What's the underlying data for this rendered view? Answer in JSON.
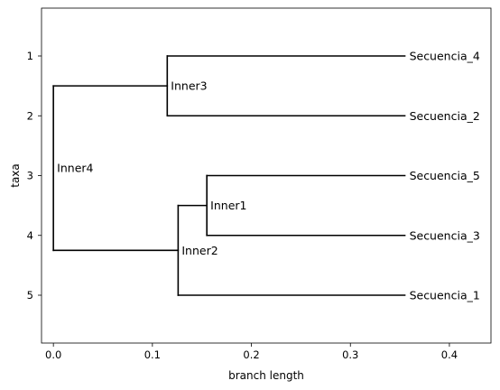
{
  "chart_data": {
    "type": "phylogenetic-tree",
    "xlabel": "branch length",
    "ylabel": "taxa",
    "xlim": [
      -0.012,
      0.442
    ],
    "ylim": [
      5.8,
      0.2
    ],
    "xticks": [
      0.0,
      0.1,
      0.2,
      0.3,
      0.4
    ],
    "xtick_labels": [
      "0.0",
      "0.1",
      "0.2",
      "0.3",
      "0.4"
    ],
    "yticks": [
      1,
      2,
      3,
      4,
      5
    ],
    "ytick_labels": [
      "1",
      "2",
      "3",
      "4",
      "5"
    ],
    "leaves": [
      {
        "name": "Secuencia_4",
        "x": 0.355,
        "y": 1
      },
      {
        "name": "Secuencia_2",
        "x": 0.355,
        "y": 2
      },
      {
        "name": "Secuencia_5",
        "x": 0.355,
        "y": 3
      },
      {
        "name": "Secuencia_3",
        "x": 0.355,
        "y": 4
      },
      {
        "name": "Secuencia_1",
        "x": 0.355,
        "y": 5
      }
    ],
    "inner_nodes": [
      {
        "name": "Inner3",
        "x": 0.115,
        "y": 1.5
      },
      {
        "name": "Inner1",
        "x": 0.155,
        "y": 3.5
      },
      {
        "name": "Inner2",
        "x": 0.126,
        "y": 4.25
      },
      {
        "name": "Inner4",
        "x": 0.0,
        "y": 2.875
      }
    ],
    "label_positions": {
      "Inner4": {
        "x": 0.0,
        "y": 2.875
      }
    },
    "branches": [
      {
        "x0": 0.0,
        "x1": 0.115,
        "y": 1.5
      },
      {
        "x0": 0.0,
        "x1": 0.126,
        "y": 4.25
      },
      {
        "x0": 0.115,
        "x1": 0.355,
        "y": 1
      },
      {
        "x0": 0.115,
        "x1": 0.355,
        "y": 2
      },
      {
        "x0": 0.126,
        "x1": 0.155,
        "y": 3.5
      },
      {
        "x0": 0.126,
        "x1": 0.355,
        "y": 5
      },
      {
        "x0": 0.155,
        "x1": 0.355,
        "y": 3
      },
      {
        "x0": 0.155,
        "x1": 0.355,
        "y": 4
      }
    ],
    "connectors": [
      {
        "x": 0.0,
        "y0": 1.5,
        "y1": 4.25
      },
      {
        "x": 0.115,
        "y0": 1,
        "y1": 2
      },
      {
        "x": 0.126,
        "y0": 3.5,
        "y1": 5
      },
      {
        "x": 0.155,
        "y0": 3,
        "y1": 4
      }
    ],
    "colors": {
      "line": "#000000",
      "axes": "#000000",
      "background": "#ffffff"
    }
  }
}
